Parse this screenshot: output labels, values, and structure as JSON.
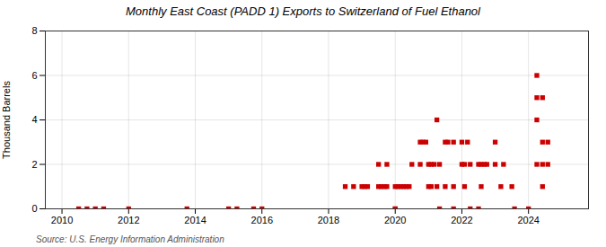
{
  "chart_data": {
    "type": "scatter",
    "title": "Monthly East Coast (PADD 1) Exports to Switzerland of Fuel Ethanol",
    "ylabel": "Thousand Barrels",
    "source": "Source: U.S. Energy Information Administration",
    "color": "#cc0000",
    "marker": "square",
    "grid": true,
    "xlim": [
      2009.5,
      2025.8
    ],
    "xticks": [
      2010,
      2012,
      2014,
      2016,
      2018,
      2020,
      2022,
      2024
    ],
    "ylim": [
      0,
      8
    ],
    "yticks": [
      0,
      2,
      4,
      6,
      8
    ],
    "x": [
      2010.5,
      2010.75,
      2011.0,
      2011.25,
      2012.0,
      2013.75,
      2015.0,
      2015.25,
      2015.75,
      2016.0,
      2018.5,
      2018.75,
      2019.0,
      2019.08,
      2019.17,
      2019.5,
      2019.58,
      2019.67,
      2019.75,
      2019.5,
      2019.75,
      2020.0,
      2020.0,
      2020.08,
      2020.17,
      2020.25,
      2020.33,
      2020.42,
      2020.5,
      2020.75,
      2020.0,
      2020.75,
      2020.83,
      2020.92,
      2021.0,
      2021.08,
      2021.25,
      2021.0,
      2021.08,
      2021.17,
      2021.33,
      2021.25,
      2021.5,
      2021.58,
      2021.75,
      2021.5,
      2021.75,
      2021.33,
      2021.75,
      2022.0,
      2022.17,
      2022.0,
      2022.08,
      2022.25,
      2022.5,
      2022.58,
      2022.67,
      2022.75,
      2022.08,
      2022.58,
      2022.25,
      2022.5,
      2023.0,
      2023.0,
      2023.25,
      2023.17,
      2023.5,
      2023.58,
      2024.0,
      2024.25,
      2024.25,
      2024.42,
      2024.25,
      2024.42,
      2024.58,
      2024.25,
      2024.42,
      2024.58,
      2024.42
    ],
    "values": [
      0,
      0,
      0,
      0,
      0,
      0,
      0,
      0,
      0,
      0,
      1,
      1,
      1,
      1,
      1,
      1,
      1,
      1,
      1,
      2,
      2,
      0,
      1,
      1,
      1,
      1,
      1,
      1,
      2,
      2,
      0,
      3,
      3,
      3,
      1,
      1,
      1,
      2,
      2,
      2,
      2,
      4,
      3,
      3,
      3,
      1,
      1,
      0,
      0,
      3,
      3,
      2,
      2,
      2,
      2,
      2,
      2,
      2,
      1,
      1,
      0,
      0,
      3,
      2,
      2,
      1,
      1,
      0,
      0,
      6,
      5,
      5,
      4,
      3,
      3,
      2,
      2,
      2,
      1
    ]
  }
}
